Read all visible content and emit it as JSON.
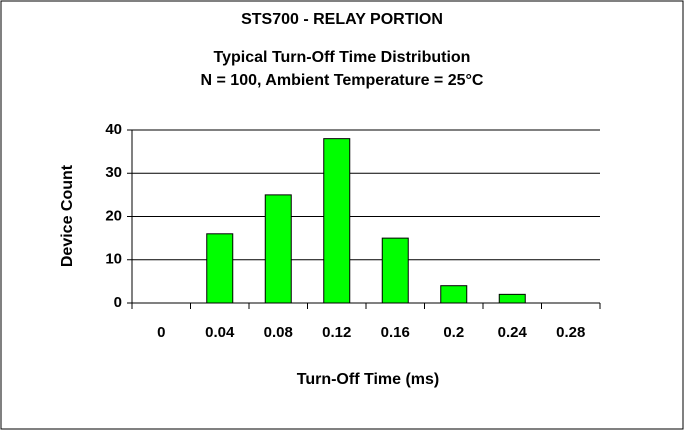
{
  "chart_data": {
    "type": "bar",
    "title": "STS700 - RELAY PORTION",
    "subtitle": [
      "Typical Turn-Off Time Distribution",
      "N = 100, Ambient Temperature = 25°C"
    ],
    "x_label": "Turn-Off Time (ms)",
    "y_label": "Device Count",
    "categories": [
      "0",
      "0.04",
      "0.08",
      "0.12",
      "0.16",
      "0.2",
      "0.24",
      "0.28"
    ],
    "values": [
      0,
      16,
      25,
      38,
      15,
      4,
      2,
      0
    ],
    "color": "#00ff00",
    "ylim": [
      0,
      40
    ],
    "yticks": [
      0,
      10,
      20,
      30,
      40
    ],
    "grid": true
  }
}
